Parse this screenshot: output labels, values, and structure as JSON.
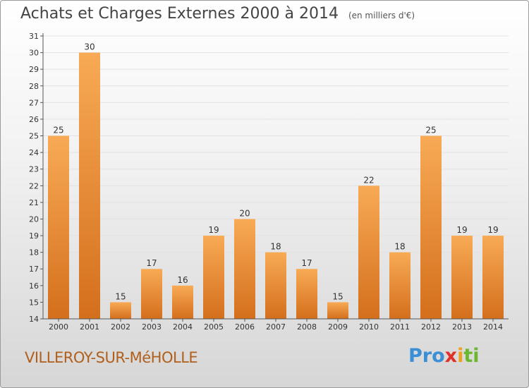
{
  "title": "Achats et Charges Externes 2000 à 2014",
  "unit": "(en milliers d'€)",
  "location": "VILLEROY-SUR-MéHOLLE",
  "logo": "Proxiti",
  "colors": {
    "bar_light": "#f7a450",
    "bar_dark": "#d9741f",
    "name": "#b0601c"
  },
  "chart_data": {
    "type": "bar",
    "title": "Achats et Charges Externes 2000 à 2014",
    "subtitle": "(en milliers d'€)",
    "categories": [
      "2000",
      "2001",
      "2002",
      "2003",
      "2004",
      "2005",
      "2006",
      "2007",
      "2008",
      "2009",
      "2010",
      "2011",
      "2012",
      "2013",
      "2014"
    ],
    "values": [
      25,
      30,
      15,
      17,
      16,
      19,
      20,
      18,
      17,
      15,
      22,
      18,
      25,
      19,
      19
    ],
    "ylim": [
      14,
      31
    ],
    "yticks": [
      14,
      15,
      16,
      17,
      18,
      19,
      20,
      21,
      22,
      23,
      24,
      25,
      26,
      27,
      28,
      29,
      30,
      31
    ],
    "grid": true,
    "data_labels": true
  }
}
